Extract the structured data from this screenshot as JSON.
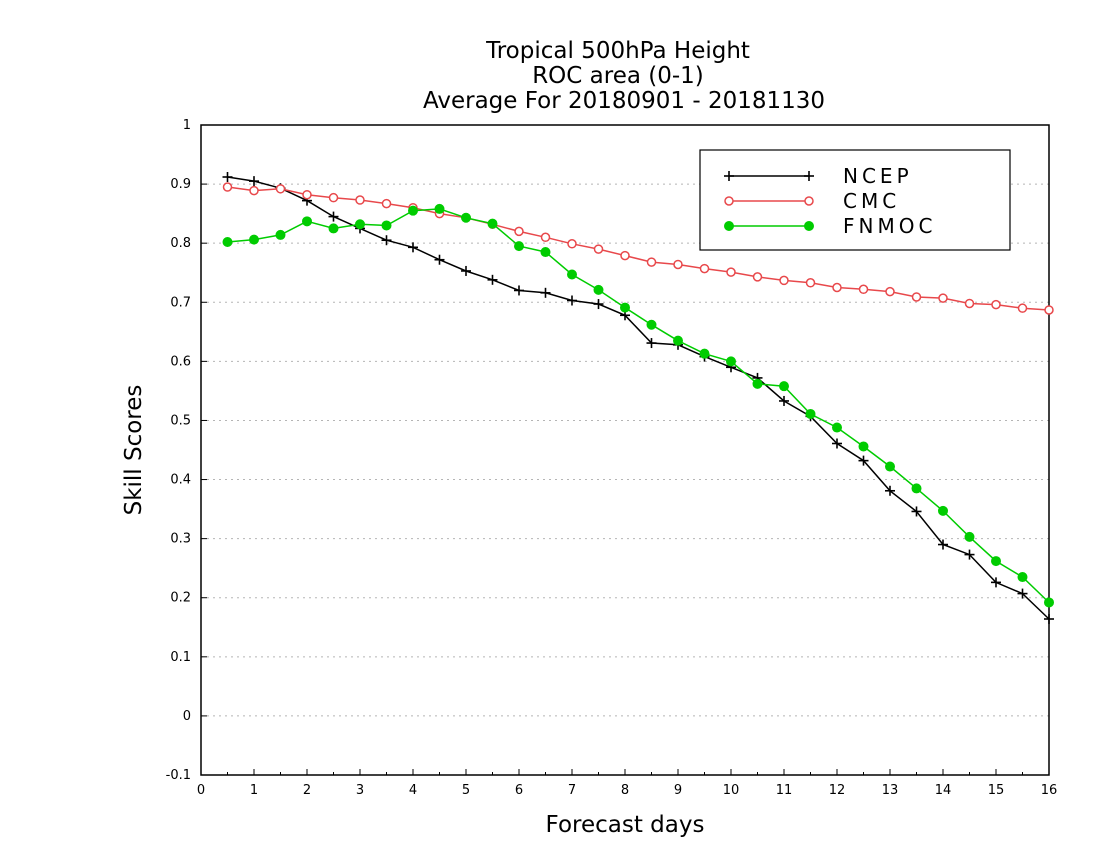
{
  "chart_data": {
    "type": "line",
    "title": [
      "Tropical 500hPa Height",
      "ROC area (0-1)",
      "Average For 20180901 - 20181130"
    ],
    "xlabel": "Forecast days",
    "ylabel": "Skill Scores",
    "xlim": [
      0,
      16
    ],
    "ylim": [
      -0.1,
      1
    ],
    "xticks": [
      "0",
      "1",
      "2",
      "3",
      "4",
      "5",
      "6",
      "7",
      "8",
      "9",
      "10",
      "11",
      "12",
      "13",
      "14",
      "15",
      "16"
    ],
    "yticks": [
      "-0.1",
      "0",
      "0.1",
      "0.2",
      "0.3",
      "0.4",
      "0.5",
      "0.6",
      "0.7",
      "0.8",
      "0.9",
      "1"
    ],
    "grid": true,
    "legend_position": "top-right",
    "x": [
      0.5,
      1,
      1.5,
      2,
      2.5,
      3,
      3.5,
      4,
      4.5,
      5,
      5.5,
      6,
      6.5,
      7,
      7.5,
      8,
      8.5,
      9,
      9.5,
      10,
      10.5,
      11,
      11.5,
      12,
      12.5,
      13,
      13.5,
      14,
      14.5,
      15,
      15.5,
      16
    ],
    "series": [
      {
        "name": "NCEP",
        "color": "#000000",
        "marker": "plus",
        "values": [
          0.912,
          0.905,
          0.893,
          0.872,
          0.845,
          0.825,
          0.805,
          0.793,
          0.772,
          0.753,
          0.738,
          0.72,
          0.716,
          0.703,
          0.697,
          0.678,
          0.631,
          0.628,
          0.608,
          0.59,
          0.572,
          0.533,
          0.507,
          0.461,
          0.432,
          0.381,
          0.346,
          0.29,
          0.273,
          0.226,
          0.207,
          0.164
        ]
      },
      {
        "name": "CMC",
        "color": "#e8484b",
        "marker": "open-circle",
        "values": [
          0.895,
          0.889,
          0.892,
          0.882,
          0.877,
          0.873,
          0.867,
          0.86,
          0.85,
          0.843,
          0.832,
          0.82,
          0.81,
          0.799,
          0.79,
          0.779,
          0.768,
          0.764,
          0.757,
          0.751,
          0.743,
          0.737,
          0.733,
          0.725,
          0.722,
          0.718,
          0.709,
          0.707,
          0.698,
          0.696,
          0.69,
          0.687
        ]
      },
      {
        "name": "FNMOC",
        "color": "#00cc00",
        "marker": "filled-circle",
        "values": [
          0.802,
          0.806,
          0.814,
          0.837,
          0.825,
          0.832,
          0.83,
          0.855,
          0.858,
          0.843,
          0.833,
          0.795,
          0.785,
          0.747,
          0.721,
          0.691,
          0.662,
          0.635,
          0.613,
          0.6,
          0.562,
          0.558,
          0.511,
          0.488,
          0.456,
          0.422,
          0.385,
          0.347,
          0.303,
          0.262,
          0.235,
          0.192
        ]
      }
    ]
  }
}
